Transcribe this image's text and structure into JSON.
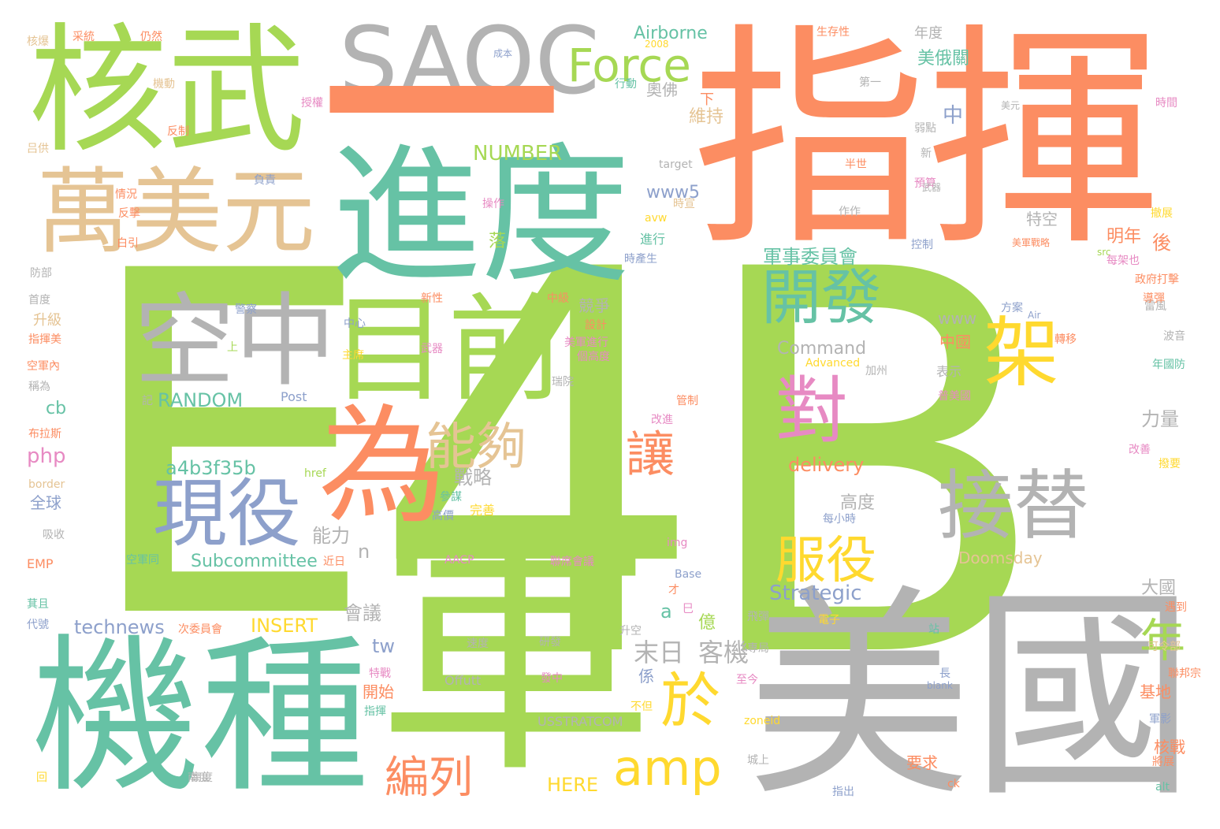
{
  "palette": {
    "green": "#a6d854",
    "teal": "#66c2a5",
    "orange": "#fc8d62",
    "grey": "#b3b3b3",
    "tan": "#e5c494",
    "blue": "#8da0cb",
    "pink": "#e78ac3",
    "yellow": "#ffd92f"
  },
  "words": [
    {
      "text": "E",
      "color": "green"
    },
    {
      "text": "4B",
      "color": "green"
    },
    {
      "text": "指揮",
      "color": "orange"
    },
    {
      "text": "軍",
      "color": "green"
    },
    {
      "text": "美國",
      "color": "grey"
    },
    {
      "text": "機種",
      "color": "teal"
    },
    {
      "text": "進度",
      "color": "teal"
    },
    {
      "text": "核武",
      "color": "green"
    },
    {
      "text": "SAOC",
      "color": "grey"
    },
    {
      "text": "一",
      "color": "orange"
    },
    {
      "text": "空中",
      "color": "grey"
    },
    {
      "text": "目前",
      "color": "green"
    },
    {
      "text": "萬美元",
      "color": "tan"
    },
    {
      "text": "為",
      "color": "orange"
    },
    {
      "text": "現役",
      "color": "blue"
    },
    {
      "text": "Force",
      "color": "green"
    },
    {
      "text": "開發",
      "color": "teal"
    },
    {
      "text": "接替",
      "color": "grey"
    },
    {
      "text": "架",
      "color": "yellow"
    },
    {
      "text": "對",
      "color": "pink"
    },
    {
      "text": "服役",
      "color": "yellow"
    },
    {
      "text": "能夠",
      "color": "tan"
    },
    {
      "text": "讓",
      "color": "orange"
    },
    {
      "text": "於",
      "color": "yellow"
    },
    {
      "text": "amp",
      "color": "yellow"
    },
    {
      "text": "編列",
      "color": "orange"
    },
    {
      "text": "年",
      "color": "green"
    },
    {
      "text": "末日",
      "color": "grey"
    },
    {
      "text": "客機",
      "color": "grey"
    },
    {
      "text": "RANDOM",
      "color": "teal"
    },
    {
      "text": "a4b3f35b",
      "color": "teal"
    },
    {
      "text": "NUMBER",
      "color": "green"
    },
    {
      "text": "Airborne",
      "color": "teal"
    },
    {
      "text": "technews",
      "color": "blue"
    },
    {
      "text": "INSERT",
      "color": "yellow"
    },
    {
      "text": "Subcommittee",
      "color": "teal"
    },
    {
      "text": "Strategic",
      "color": "blue"
    },
    {
      "text": "delivery",
      "color": "orange"
    },
    {
      "text": "Command",
      "color": "grey"
    },
    {
      "text": "www5",
      "color": "blue"
    },
    {
      "text": "www",
      "color": "grey"
    },
    {
      "text": "Doomsday",
      "color": "tan"
    },
    {
      "text": "HERE",
      "color": "yellow"
    },
    {
      "text": "cb",
      "color": "teal"
    },
    {
      "text": "php",
      "color": "pink"
    },
    {
      "text": "tw",
      "color": "blue"
    },
    {
      "text": "a",
      "color": "teal"
    },
    {
      "text": "n",
      "color": "grey"
    },
    {
      "text": "戰略",
      "color": "grey"
    },
    {
      "text": "能力",
      "color": "grey"
    },
    {
      "text": "會議",
      "color": "grey"
    },
    {
      "text": "力量",
      "color": "grey"
    },
    {
      "text": "高度",
      "color": "grey"
    },
    {
      "text": "軍事委員會",
      "color": "teal"
    },
    {
      "text": "美俄關",
      "color": "teal"
    },
    {
      "text": "維持",
      "color": "tan"
    },
    {
      "text": "中",
      "color": "blue"
    },
    {
      "text": "後",
      "color": "orange"
    },
    {
      "text": "明年",
      "color": "orange"
    },
    {
      "text": "大國",
      "color": "grey"
    },
    {
      "text": "中國",
      "color": "orange"
    },
    {
      "text": "基地",
      "color": "orange"
    },
    {
      "text": "核戰",
      "color": "orange"
    },
    {
      "text": "要求",
      "color": "orange"
    },
    {
      "text": "開始",
      "color": "orange"
    },
    {
      "text": "奧佛",
      "color": "grey"
    },
    {
      "text": "競爭",
      "color": "grey"
    },
    {
      "text": "係",
      "color": "blue"
    },
    {
      "text": "億",
      "color": "green"
    },
    {
      "text": "特空",
      "color": "grey"
    },
    {
      "text": "年度",
      "color": "grey"
    },
    {
      "text": "下",
      "color": "orange"
    },
    {
      "text": "落",
      "color": "green"
    },
    {
      "text": "升級",
      "color": "tan"
    },
    {
      "text": "全球",
      "color": "blue"
    },
    {
      "text": "EMP",
      "color": "orange"
    },
    {
      "text": "Post",
      "color": "blue"
    },
    {
      "text": "Offutt",
      "color": "grey"
    },
    {
      "text": "USSTRATCOM",
      "color": "grey"
    },
    {
      "text": "AACP",
      "color": "pink"
    },
    {
      "text": "Base",
      "color": "blue"
    },
    {
      "text": "img",
      "color": "pink"
    },
    {
      "text": "href",
      "color": "green"
    },
    {
      "text": "border",
      "color": "tan"
    },
    {
      "text": "target",
      "color": "grey"
    },
    {
      "text": "avw",
      "color": "yellow"
    },
    {
      "text": "Advanced",
      "color": "yellow"
    },
    {
      "text": "Air",
      "color": "blue"
    },
    {
      "text": "blank",
      "color": "blue"
    },
    {
      "text": "zoneid",
      "color": "yellow"
    },
    {
      "text": "alt",
      "color": "teal"
    },
    {
      "text": "ck",
      "color": "orange"
    },
    {
      "text": "表示",
      "color": "grey"
    },
    {
      "text": "加州",
      "color": "grey"
    },
    {
      "text": "普美國",
      "color": "pink"
    },
    {
      "text": "每小時",
      "color": "blue"
    },
    {
      "text": "完善",
      "color": "yellow"
    },
    {
      "text": "高價",
      "color": "blue"
    },
    {
      "text": "參謀",
      "color": "teal"
    },
    {
      "text": "聯席會議",
      "color": "pink"
    },
    {
      "text": "指出",
      "color": "blue"
    },
    {
      "text": "升空",
      "color": "grey"
    },
    {
      "text": "研發",
      "color": "grey"
    },
    {
      "text": "發中",
      "color": "pink"
    },
    {
      "text": "速度",
      "color": "grey"
    },
    {
      "text": "管制",
      "color": "orange"
    },
    {
      "text": "改進",
      "color": "pink"
    },
    {
      "text": "中心",
      "color": "blue"
    },
    {
      "text": "主席",
      "color": "yellow"
    },
    {
      "text": "武器",
      "color": "pink"
    },
    {
      "text": "美軍進行",
      "color": "pink"
    },
    {
      "text": "個高度",
      "color": "pink"
    },
    {
      "text": "警察",
      "color": "blue"
    },
    {
      "text": "進行",
      "color": "teal"
    },
    {
      "text": "時產生",
      "color": "blue"
    },
    {
      "text": "操作",
      "color": "pink"
    },
    {
      "text": "成本",
      "color": "blue"
    },
    {
      "text": "行動",
      "color": "teal"
    },
    {
      "text": "仍然",
      "color": "orange"
    },
    {
      "text": "核爆",
      "color": "tan"
    },
    {
      "text": "負責",
      "color": "blue"
    },
    {
      "text": "情況",
      "color": "orange"
    },
    {
      "text": "反擊",
      "color": "orange"
    },
    {
      "text": "指揮美",
      "color": "orange"
    },
    {
      "text": "空軍內",
      "color": "orange"
    },
    {
      "text": "布拉斯",
      "color": "orange"
    },
    {
      "text": "改善",
      "color": "pink"
    },
    {
      "text": "防部",
      "color": "grey"
    },
    {
      "text": "首度",
      "color": "grey"
    },
    {
      "text": "電子",
      "color": "yellow"
    },
    {
      "text": "專局",
      "color": "grey"
    },
    {
      "text": "可令部",
      "color": "tan"
    },
    {
      "text": "聯邦宗",
      "color": "orange"
    },
    {
      "text": "年國防",
      "color": "teal"
    },
    {
      "text": "波音",
      "color": "grey"
    },
    {
      "text": "美軍戰略",
      "color": "orange"
    },
    {
      "text": "政府打擊",
      "color": "orange"
    },
    {
      "text": "撤展",
      "color": "yellow"
    },
    {
      "text": "時間",
      "color": "pink"
    },
    {
      "text": "第一",
      "color": "grey"
    },
    {
      "text": "美元",
      "color": "grey"
    },
    {
      "text": "生存性",
      "color": "orange"
    },
    {
      "text": "半世",
      "color": "orange"
    },
    {
      "text": "預算",
      "color": "pink"
    },
    {
      "text": "控制",
      "color": "blue"
    },
    {
      "text": "2008",
      "color": "yellow"
    },
    {
      "text": "弱點",
      "color": "grey"
    },
    {
      "text": "新",
      "color": "grey"
    },
    {
      "text": "武器",
      "color": "grey"
    },
    {
      "text": "上",
      "color": "green"
    },
    {
      "text": "才",
      "color": "orange"
    },
    {
      "text": "巳",
      "color": "pink"
    },
    {
      "text": "近日",
      "color": "orange"
    },
    {
      "text": "代號",
      "color": "blue"
    },
    {
      "text": "萁且",
      "color": "teal"
    },
    {
      "text": "吸收",
      "color": "grey"
    },
    {
      "text": "回",
      "color": "yellow"
    },
    {
      "text": "高度",
      "color": "grey"
    },
    {
      "text": "長",
      "color": "blue"
    },
    {
      "text": "特戰",
      "color": "pink"
    },
    {
      "text": "不但",
      "color": "yellow"
    },
    {
      "text": "指揮",
      "color": "teal"
    },
    {
      "text": "至今",
      "color": "pink"
    },
    {
      "text": "稱為",
      "color": "grey"
    },
    {
      "text": "授權",
      "color": "pink"
    },
    {
      "text": "反制",
      "color": "orange"
    },
    {
      "text": "機動",
      "color": "tan"
    },
    {
      "text": "吕供",
      "color": "tan"
    },
    {
      "text": "采統",
      "color": "orange"
    },
    {
      "text": "白引",
      "color": "orange"
    },
    {
      "text": "雷風",
      "color": "grey"
    },
    {
      "text": "時宣",
      "color": "tan"
    },
    {
      "text": "導彈",
      "color": "orange"
    },
    {
      "text": "遇到",
      "color": "orange"
    },
    {
      "text": "撥要",
      "color": "yellow"
    },
    {
      "text": "軍影",
      "color": "blue"
    },
    {
      "text": "將展",
      "color": "orange"
    },
    {
      "text": "次委員會",
      "color": "orange"
    },
    {
      "text": "瑞院",
      "color": "grey"
    },
    {
      "text": "城上",
      "color": "grey"
    },
    {
      "text": "站",
      "color": "teal"
    },
    {
      "text": "空軍同",
      "color": "teal"
    },
    {
      "text": "飛彈",
      "color": "grey"
    },
    {
      "text": "南度",
      "color": "grey"
    },
    {
      "text": "src",
      "color": "green"
    },
    {
      "text": "作作",
      "color": "grey"
    },
    {
      "text": "中級",
      "color": "orange"
    },
    {
      "text": "設計",
      "color": "orange"
    },
    {
      "text": "新性",
      "color": "orange"
    },
    {
      "text": "方案",
      "color": "blue"
    },
    {
      "text": "轉移",
      "color": "orange"
    },
    {
      "text": "記",
      "color": "grey"
    },
    {
      "text": "每架也",
      "color": "pink"
    }
  ]
}
